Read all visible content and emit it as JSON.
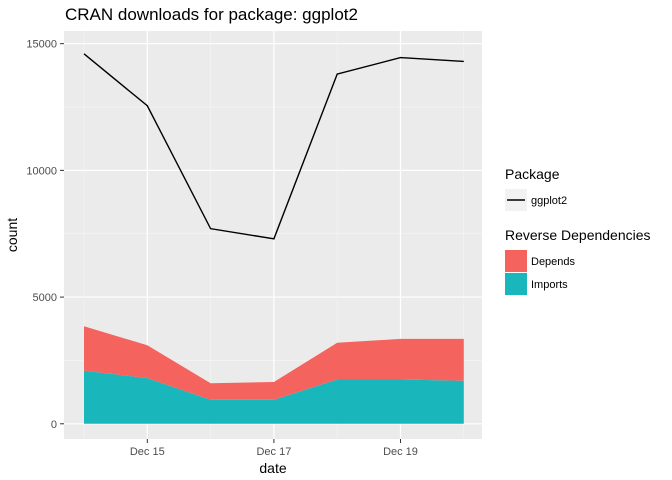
{
  "chart_data": {
    "type": "area",
    "title": "CRAN downloads for package: ggplot2",
    "xlabel": "date",
    "ylabel": "count",
    "x": [
      "Dec 14",
      "Dec 15",
      "Dec 16",
      "Dec 17",
      "Dec 18",
      "Dec 19",
      "Dec 20"
    ],
    "x_ticks": [
      "Dec 15",
      "Dec 17",
      "Dec 19"
    ],
    "y_ticks": [
      "0",
      "5000",
      "10000",
      "15000"
    ],
    "ylim": [
      -600,
      15500
    ],
    "grid": true,
    "line_series": [
      {
        "name": "ggplot2",
        "color": "#000000",
        "values": [
          14600,
          12550,
          7700,
          7300,
          13800,
          14450,
          14300
        ]
      }
    ],
    "stacked_series": [
      {
        "name": "Imports",
        "color": "#19b6bb",
        "values": [
          2100,
          1800,
          950,
          950,
          1750,
          1750,
          1700
        ]
      },
      {
        "name": "Depends",
        "color": "#f5635f",
        "values": [
          1750,
          1300,
          650,
          700,
          1450,
          1600,
          1650
        ]
      }
    ],
    "legend_placement": "right",
    "legends": [
      {
        "title": "Package",
        "entries": [
          {
            "label": "ggplot2",
            "kind": "line",
            "color": "#000000"
          }
        ]
      },
      {
        "title": "Reverse Dependencies",
        "entries": [
          {
            "label": "Depends",
            "kind": "fill",
            "color": "#f5635f"
          },
          {
            "label": "Imports",
            "kind": "fill",
            "color": "#19b6bb"
          }
        ]
      }
    ]
  }
}
